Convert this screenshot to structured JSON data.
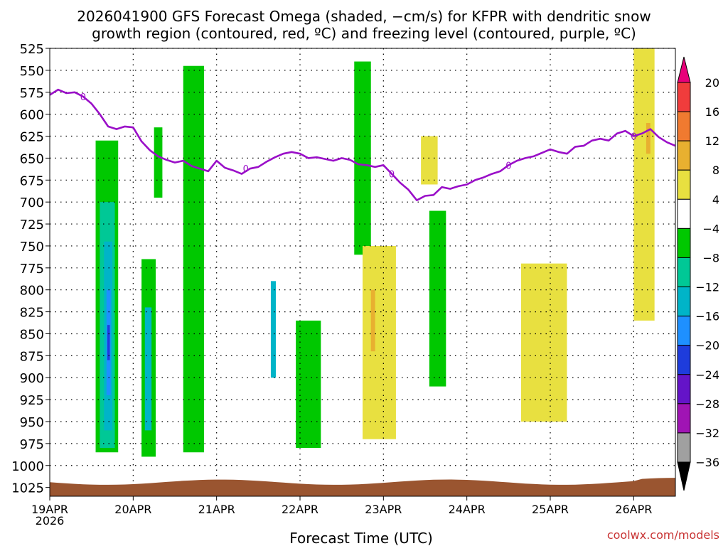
{
  "title": {
    "line1": "2026041900 GFS Forecast Omega (shaded, −cm/s) for KFPR with dendritic snow",
    "line2": "growth region (contoured, red, ºC) and freezing level (contoured, purple, ºC)"
  },
  "xlabel": "Forecast Time (UTC)",
  "watermark": "coolwx.com/models",
  "colors": {
    "freezing_line": "#9a0fc8",
    "terrain": "#9a5530",
    "grid": "#000000"
  },
  "chart_data": {
    "type": "heatmap",
    "x_unit": "forecast time (UTC)",
    "y_unit": "pressure (hPa)",
    "xlim": [
      "2026-04-19T00Z",
      "2026-04-26T12Z"
    ],
    "ylim": [
      1035,
      525
    ],
    "ytick_labels": [
      "525",
      "550",
      "575",
      "600",
      "625",
      "650",
      "675",
      "700",
      "725",
      "750",
      "775",
      "800",
      "825",
      "850",
      "875",
      "900",
      "925",
      "950",
      "975",
      "1000",
      "1025"
    ],
    "yticks": [
      525,
      550,
      575,
      600,
      625,
      650,
      675,
      700,
      725,
      750,
      775,
      800,
      825,
      850,
      875,
      900,
      925,
      950,
      975,
      1000,
      1025
    ],
    "xtick_labels": [
      "19APR",
      "20APR",
      "21APR",
      "22APR",
      "23APR",
      "24APR",
      "25APR",
      "26APR"
    ],
    "xtick_year": "2026",
    "xticks_days": [
      0,
      1,
      2,
      3,
      4,
      5,
      6,
      7
    ],
    "grid": true,
    "colorbar": {
      "labels": [
        "20",
        "16",
        "12",
        "8",
        "4",
        "−4",
        "−8",
        "−12",
        "−16",
        "−20",
        "−24",
        "−28",
        "−32",
        "−36"
      ],
      "colors": [
        "#e8007a",
        "#f03c3c",
        "#f07a30",
        "#e8b030",
        "#e8e040",
        "#ffffff",
        "#00c800",
        "#00c896",
        "#00b4c8",
        "#1e90ff",
        "#1e3cdc",
        "#6414c8",
        "#a014b4",
        "#a0a0a0",
        "#000000"
      ]
    },
    "freezing_level": {
      "label": "0",
      "day": [
        0,
        0.1,
        0.2,
        0.3,
        0.4,
        0.5,
        0.6,
        0.7,
        0.8,
        0.9,
        1.0,
        1.1,
        1.2,
        1.3,
        1.4,
        1.5,
        1.6,
        1.7,
        1.8,
        1.9,
        2.0,
        2.1,
        2.2,
        2.3,
        2.4,
        2.5,
        2.6,
        2.7,
        2.8,
        2.9,
        3.0,
        3.1,
        3.2,
        3.3,
        3.4,
        3.5,
        3.6,
        3.7,
        3.8,
        3.9,
        4.0,
        4.1,
        4.2,
        4.3,
        4.4,
        4.5,
        4.6,
        4.7,
        4.8,
        4.9,
        5.0,
        5.1,
        5.2,
        5.3,
        5.4,
        5.5,
        5.6,
        5.7,
        5.8,
        5.9,
        6.0,
        6.1,
        6.2,
        6.3,
        6.4,
        6.5,
        6.6,
        6.7,
        6.8,
        6.9,
        7.0,
        7.1,
        7.2,
        7.3,
        7.4,
        7.5
      ],
      "pressure": [
        578,
        572,
        576,
        575,
        580,
        588,
        600,
        614,
        617,
        614,
        615,
        631,
        641,
        648,
        652,
        655,
        653,
        659,
        662,
        665,
        653,
        661,
        664,
        668,
        662,
        660,
        654,
        649,
        645,
        643,
        645,
        650,
        649,
        651,
        653,
        650,
        652,
        657,
        658,
        660,
        658,
        668,
        678,
        686,
        698,
        693,
        692,
        683,
        685,
        682,
        680,
        675,
        672,
        668,
        665,
        658,
        653,
        650,
        648,
        644,
        640,
        643,
        645,
        637,
        636,
        630,
        628,
        630,
        622,
        619,
        625,
        622,
        617,
        626,
        632,
        636
      ]
    },
    "shaded_regions": [
      {
        "level": "-4",
        "day_range": [
          0.55,
          0.82
        ],
        "p_range": [
          630,
          985
        ]
      },
      {
        "level": "-8",
        "day_range": [
          0.6,
          0.78
        ],
        "p_range": [
          700,
          980
        ]
      },
      {
        "level": "-12",
        "day_range": [
          0.65,
          0.75
        ],
        "p_range": [
          745,
          960
        ]
      },
      {
        "level": "-16",
        "day_range": [
          0.68,
          0.73
        ],
        "p_range": [
          800,
          920
        ]
      },
      {
        "level": "-20",
        "day_range": [
          0.69,
          0.72
        ],
        "p_range": [
          840,
          880
        ]
      },
      {
        "level": "-4",
        "day_range": [
          1.1,
          1.27
        ],
        "p_range": [
          765,
          990
        ]
      },
      {
        "level": "-12",
        "day_range": [
          1.14,
          1.22
        ],
        "p_range": [
          820,
          960
        ]
      },
      {
        "level": "-4",
        "day_range": [
          1.25,
          1.35
        ],
        "p_range": [
          615,
          695
        ]
      },
      {
        "level": "-4",
        "day_range": [
          1.6,
          1.85
        ],
        "p_range": [
          545,
          985
        ]
      },
      {
        "level": "-4",
        "day_range": [
          2.95,
          3.25
        ],
        "p_range": [
          835,
          980
        ]
      },
      {
        "level": "-12",
        "day_range": [
          2.65,
          2.71
        ],
        "p_range": [
          790,
          900
        ]
      },
      {
        "level": "-4",
        "day_range": [
          3.65,
          3.85
        ],
        "p_range": [
          540,
          760
        ]
      },
      {
        "level": "4",
        "day_range": [
          3.75,
          4.15
        ],
        "p_range": [
          750,
          970
        ]
      },
      {
        "level": "8",
        "day_range": [
          3.85,
          3.9
        ],
        "p_range": [
          800,
          870
        ]
      },
      {
        "level": "4",
        "day_range": [
          4.45,
          4.65
        ],
        "p_range": [
          625,
          680
        ]
      },
      {
        "level": "-4",
        "day_range": [
          4.55,
          4.75
        ],
        "p_range": [
          710,
          910
        ]
      },
      {
        "level": "4",
        "day_range": [
          5.65,
          6.2
        ],
        "p_range": [
          770,
          950
        ]
      },
      {
        "level": "4",
        "day_range": [
          7.0,
          7.25
        ],
        "p_range": [
          525,
          835
        ]
      },
      {
        "level": "8",
        "day_range": [
          7.15,
          7.2
        ],
        "p_range": [
          610,
          645
        ]
      }
    ]
  }
}
